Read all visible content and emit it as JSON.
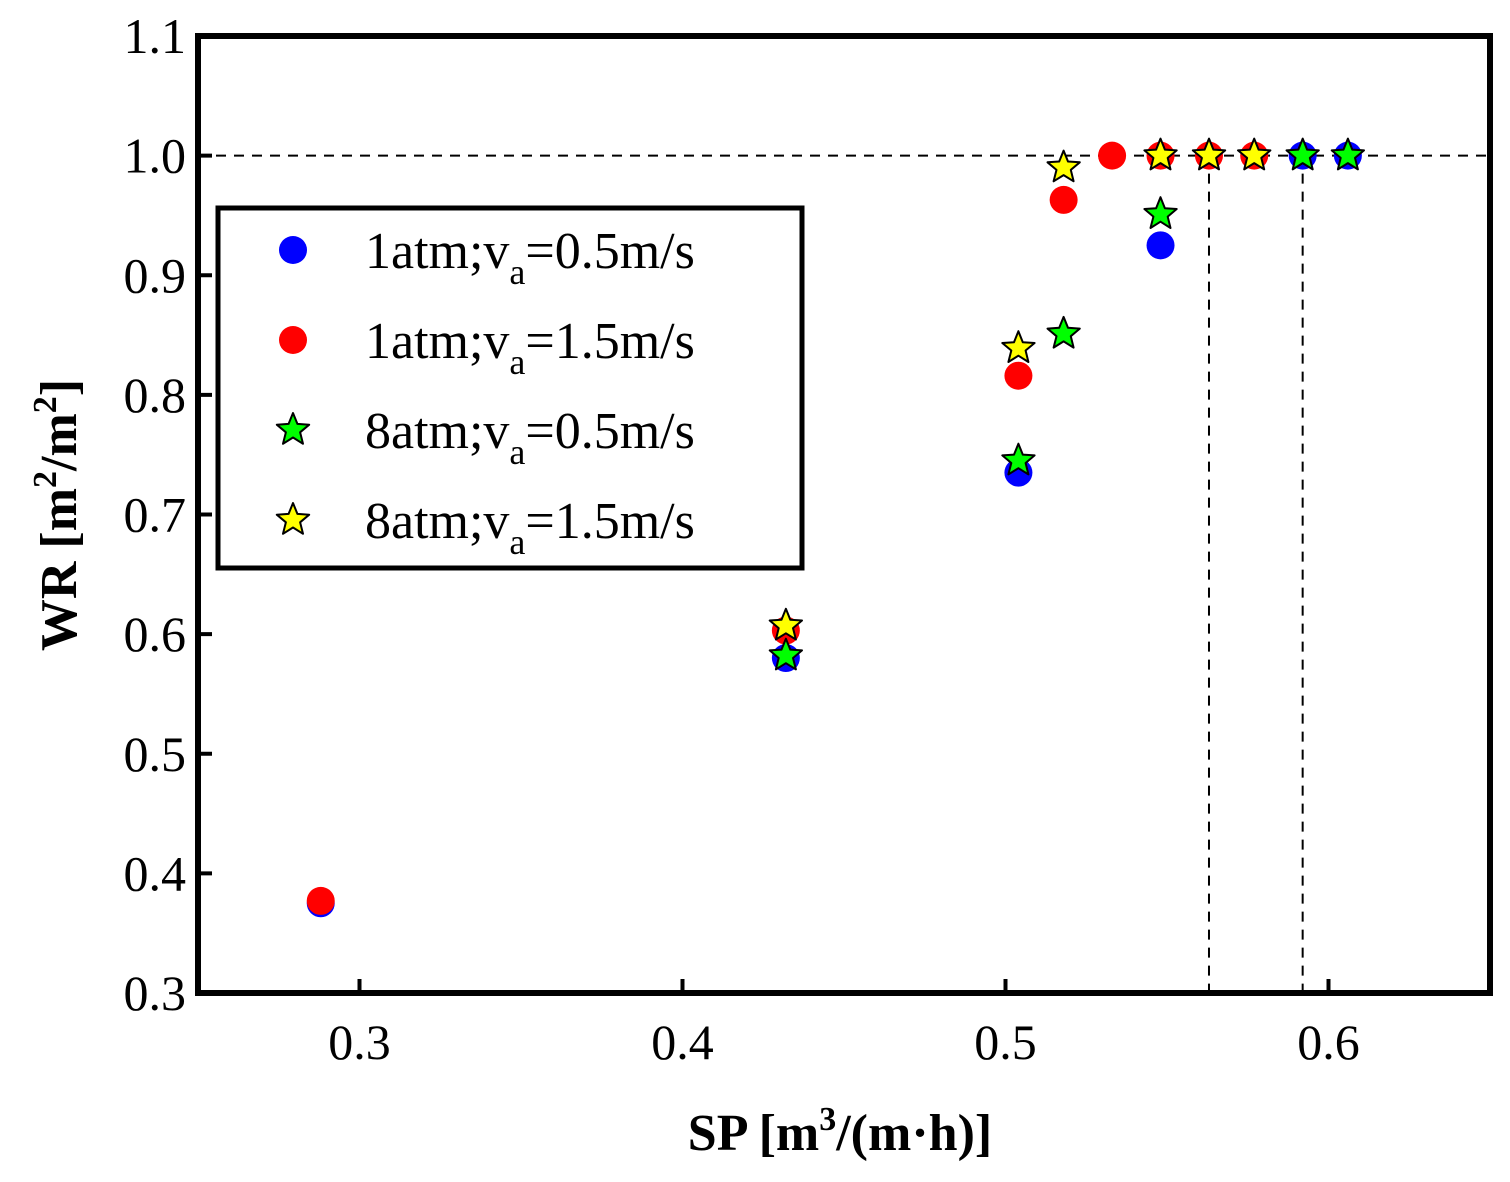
{
  "chart_data": {
    "type": "scatter",
    "title": "",
    "xlabel": {
      "text": "SP [m",
      "sup": "3",
      "tail": "/(m·h)]"
    },
    "ylabel": {
      "pre": "WR [m",
      "sup1": "2",
      "mid": "/m",
      "sup2": "2",
      "tail": "]"
    },
    "xlim": [
      0.25,
      0.65
    ],
    "ylim": [
      0.3,
      1.1
    ],
    "xticks": [
      "0.3",
      "0.4",
      "0.5",
      "0.6"
    ],
    "xtick_values": [
      0.3,
      0.4,
      0.5,
      0.6
    ],
    "yticks": [
      "0.3",
      "0.4",
      "0.5",
      "0.6",
      "0.7",
      "0.8",
      "0.9",
      "1.0",
      "1.1"
    ],
    "ytick_values": [
      0.3,
      0.4,
      0.5,
      0.6,
      0.7,
      0.8,
      0.9,
      1.0,
      1.1
    ],
    "grid": false,
    "legend_position": "left",
    "reference_lines": {
      "horizontal": 1.0,
      "vertical": [
        0.563,
        0.592
      ]
    },
    "series": [
      {
        "name": "1atm;va=0.5m/s",
        "label_pre": "1atm;v",
        "label_sub": "a",
        "label_post": "=0.5m/s",
        "marker": "circle",
        "color": "#0000ff",
        "points": [
          [
            0.288,
            0.375
          ],
          [
            0.432,
            0.58
          ],
          [
            0.504,
            0.735
          ],
          [
            0.548,
            0.925
          ],
          [
            0.592,
            1.0
          ],
          [
            0.606,
            1.0
          ]
        ]
      },
      {
        "name": "1atm;va=1.5m/s",
        "label_pre": "1atm;v",
        "label_sub": "a",
        "label_post": "=1.5m/s",
        "marker": "circle",
        "color": "#ff0000",
        "points": [
          [
            0.288,
            0.377
          ],
          [
            0.432,
            0.603
          ],
          [
            0.504,
            0.816
          ],
          [
            0.518,
            0.963
          ],
          [
            0.533,
            1.0
          ],
          [
            0.548,
            1.0
          ],
          [
            0.563,
            1.0
          ],
          [
            0.577,
            1.0
          ]
        ]
      },
      {
        "name": "8atm;va=0.5m/s",
        "label_pre": "8atm;v",
        "label_sub": "a",
        "label_post": "=0.5m/s",
        "marker": "star",
        "color": "#00ff00",
        "points": [
          [
            0.432,
            0.582
          ],
          [
            0.504,
            0.745
          ],
          [
            0.518,
            0.851
          ],
          [
            0.548,
            0.951
          ],
          [
            0.592,
            1.0
          ],
          [
            0.606,
            1.0
          ]
        ]
      },
      {
        "name": "8atm;va=1.5m/s",
        "label_pre": "8atm;v",
        "label_sub": "a",
        "label_post": "=1.5m/s",
        "marker": "star",
        "color": "#ffff00",
        "points": [
          [
            0.432,
            0.607
          ],
          [
            0.504,
            0.839
          ],
          [
            0.518,
            0.99
          ],
          [
            0.548,
            1.0
          ],
          [
            0.563,
            1.0
          ],
          [
            0.577,
            1.0
          ]
        ]
      }
    ]
  }
}
